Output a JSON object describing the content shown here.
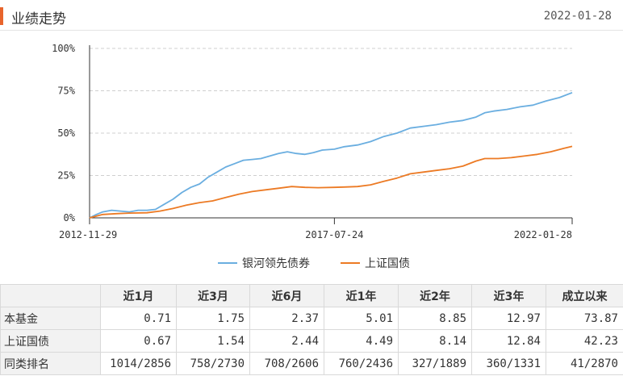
{
  "header": {
    "title": "业绩走势",
    "date": "2022-01-28",
    "accent_color": "#e8642c"
  },
  "chart_data": {
    "type": "line",
    "ylim": [
      0,
      100
    ],
    "y_ticks": [
      "0%",
      "25%",
      "50%",
      "75%",
      "100%"
    ],
    "x_ticks": [
      "2012-11-29",
      "2017-07-24",
      "2022-01-28"
    ],
    "x_range": [
      "2012-11-29",
      "2022-01-28"
    ],
    "grid": true,
    "legend_position": "bottom",
    "series": [
      {
        "name": "银河领先债券",
        "color": "#6aaee0",
        "points": [
          [
            "2012-11-29",
            0
          ],
          [
            "2013-01-15",
            2
          ],
          [
            "2013-03-01",
            3.5
          ],
          [
            "2013-05-01",
            4.5
          ],
          [
            "2013-07-01",
            4
          ],
          [
            "2013-09-01",
            3.5
          ],
          [
            "2013-11-01",
            4.5
          ],
          [
            "2014-01-01",
            4.5
          ],
          [
            "2014-03-01",
            5
          ],
          [
            "2014-05-01",
            8
          ],
          [
            "2014-07-01",
            11
          ],
          [
            "2014-09-01",
            15
          ],
          [
            "2014-11-01",
            18
          ],
          [
            "2015-01-01",
            20
          ],
          [
            "2015-03-01",
            24
          ],
          [
            "2015-05-01",
            27
          ],
          [
            "2015-07-01",
            30
          ],
          [
            "2015-09-01",
            32
          ],
          [
            "2015-11-01",
            34
          ],
          [
            "2016-01-01",
            34.5
          ],
          [
            "2016-03-01",
            35
          ],
          [
            "2016-05-01",
            36.5
          ],
          [
            "2016-07-01",
            38
          ],
          [
            "2016-09-01",
            39
          ],
          [
            "2016-11-01",
            38
          ],
          [
            "2017-01-01",
            37.5
          ],
          [
            "2017-03-01",
            38.5
          ],
          [
            "2017-05-01",
            40
          ],
          [
            "2017-07-24",
            40.5
          ],
          [
            "2017-10-01",
            42
          ],
          [
            "2018-01-01",
            43
          ],
          [
            "2018-04-01",
            45
          ],
          [
            "2018-07-01",
            48
          ],
          [
            "2018-10-01",
            50
          ],
          [
            "2019-01-01",
            53
          ],
          [
            "2019-04-01",
            54
          ],
          [
            "2019-07-01",
            55
          ],
          [
            "2019-10-01",
            56.5
          ],
          [
            "2020-01-01",
            57.5
          ],
          [
            "2020-04-01",
            59.5
          ],
          [
            "2020-06-01",
            62
          ],
          [
            "2020-08-01",
            63
          ],
          [
            "2020-11-01",
            64
          ],
          [
            "2021-02-01",
            65.5
          ],
          [
            "2021-05-01",
            66.5
          ],
          [
            "2021-08-01",
            69
          ],
          [
            "2021-11-01",
            71
          ],
          [
            "2022-01-28",
            73.9
          ]
        ]
      },
      {
        "name": "上证国债",
        "color": "#ec7a24",
        "points": [
          [
            "2012-11-29",
            0
          ],
          [
            "2013-03-01",
            2
          ],
          [
            "2013-06-01",
            2.5
          ],
          [
            "2013-09-01",
            2.8
          ],
          [
            "2014-01-01",
            3
          ],
          [
            "2014-04-01",
            4
          ],
          [
            "2014-07-01",
            5.5
          ],
          [
            "2014-10-01",
            7.5
          ],
          [
            "2015-01-01",
            9
          ],
          [
            "2015-04-01",
            10
          ],
          [
            "2015-07-01",
            12
          ],
          [
            "2015-10-01",
            14
          ],
          [
            "2016-01-01",
            15.5
          ],
          [
            "2016-04-01",
            16.5
          ],
          [
            "2016-07-01",
            17.5
          ],
          [
            "2016-10-01",
            18.5
          ],
          [
            "2017-01-01",
            18
          ],
          [
            "2017-04-01",
            17.8
          ],
          [
            "2017-07-24",
            18
          ],
          [
            "2017-10-01",
            18.2
          ],
          [
            "2018-01-01",
            18.5
          ],
          [
            "2018-04-01",
            19.5
          ],
          [
            "2018-07-01",
            21.5
          ],
          [
            "2018-10-01",
            23.5
          ],
          [
            "2019-01-01",
            26
          ],
          [
            "2019-04-01",
            27
          ],
          [
            "2019-07-01",
            28
          ],
          [
            "2019-10-01",
            29
          ],
          [
            "2020-01-01",
            30.5
          ],
          [
            "2020-04-01",
            33.5
          ],
          [
            "2020-06-01",
            35
          ],
          [
            "2020-09-01",
            35
          ],
          [
            "2020-12-01",
            35.5
          ],
          [
            "2021-03-01",
            36.5
          ],
          [
            "2021-06-01",
            37.5
          ],
          [
            "2021-09-01",
            39
          ],
          [
            "2021-12-01",
            41
          ],
          [
            "2022-01-28",
            42.2
          ]
        ]
      }
    ]
  },
  "table": {
    "headers": [
      "",
      "近1月",
      "近3月",
      "近6月",
      "近1年",
      "近2年",
      "近3年",
      "成立以来"
    ],
    "rows": [
      {
        "label": "本基金",
        "values": [
          "0.71",
          "1.75",
          "2.37",
          "5.01",
          "8.85",
          "12.97",
          "73.87"
        ]
      },
      {
        "label": "上证国债",
        "values": [
          "0.67",
          "1.54",
          "2.44",
          "4.49",
          "8.14",
          "12.84",
          "42.23"
        ]
      },
      {
        "label": "同类排名",
        "values": [
          "1014/2856",
          "758/2730",
          "708/2606",
          "760/2436",
          "327/1889",
          "360/1331",
          "41/2870"
        ]
      }
    ]
  }
}
